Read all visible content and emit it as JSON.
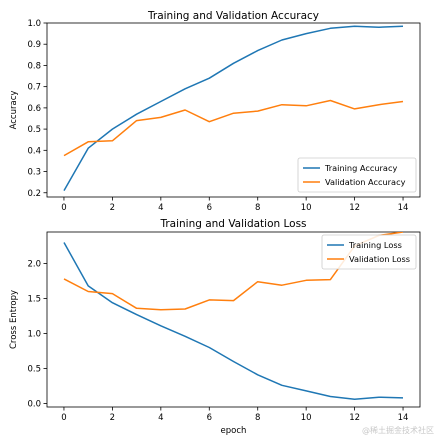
{
  "chart_data": [
    {
      "type": "line",
      "title": "Training and Validation Accuracy",
      "xlabel": "",
      "ylabel": "Accuracy",
      "x": [
        0,
        1,
        2,
        3,
        4,
        5,
        6,
        7,
        8,
        9,
        10,
        11,
        12,
        13,
        14
      ],
      "xticks": [
        "0",
        "2",
        "4",
        "6",
        "8",
        "10",
        "12",
        "14"
      ],
      "ylim": [
        0.18,
        1.0
      ],
      "yticks": [
        "0.2",
        "0.3",
        "0.4",
        "0.5",
        "0.6",
        "0.7",
        "0.8",
        "0.9",
        "1.0"
      ],
      "grid": false,
      "legend": "lower right",
      "series": [
        {
          "name": "Training Accuracy",
          "color": "#1f77b4",
          "values": [
            0.21,
            0.41,
            0.5,
            0.57,
            0.63,
            0.69,
            0.74,
            0.81,
            0.87,
            0.92,
            0.95,
            0.975,
            0.985,
            0.98,
            0.985
          ]
        },
        {
          "name": "Validation Accuracy",
          "color": "#ff7f0e",
          "values": [
            0.375,
            0.44,
            0.445,
            0.54,
            0.555,
            0.59,
            0.535,
            0.575,
            0.585,
            0.615,
            0.61,
            0.635,
            0.595,
            0.615,
            0.63
          ]
        }
      ]
    },
    {
      "type": "line",
      "title": "Training and Validation Loss",
      "xlabel": "epoch",
      "ylabel": "Cross Entropy",
      "x": [
        0,
        1,
        2,
        3,
        4,
        5,
        6,
        7,
        8,
        9,
        10,
        11,
        12,
        13,
        14
      ],
      "xticks": [
        "0",
        "2",
        "4",
        "6",
        "8",
        "10",
        "12",
        "14"
      ],
      "ylim": [
        -0.05,
        2.45
      ],
      "yticks": [
        "0.0",
        "0.5",
        "1.0",
        "1.5",
        "2.0"
      ],
      "grid": false,
      "legend": "upper right",
      "series": [
        {
          "name": "Training Loss",
          "color": "#1f77b4",
          "values": [
            2.3,
            1.68,
            1.44,
            1.27,
            1.11,
            0.96,
            0.8,
            0.6,
            0.41,
            0.26,
            0.18,
            0.1,
            0.06,
            0.09,
            0.08
          ]
        },
        {
          "name": "Validation Loss",
          "color": "#ff7f0e",
          "values": [
            1.78,
            1.6,
            1.57,
            1.36,
            1.34,
            1.35,
            1.48,
            1.47,
            1.74,
            1.69,
            1.76,
            1.77,
            2.25,
            2.4,
            2.45
          ]
        }
      ]
    }
  ],
  "watermark": "@稀土掘金技术社区"
}
